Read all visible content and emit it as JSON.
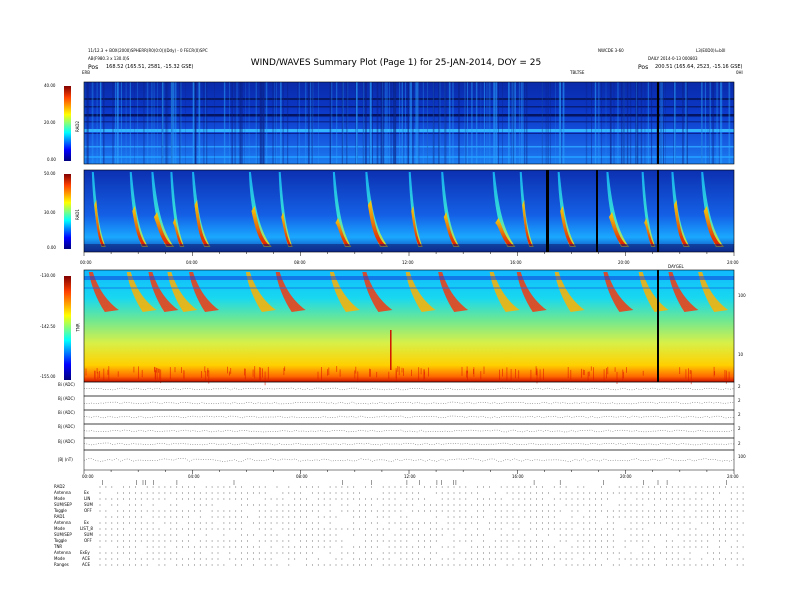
{
  "header": {
    "left_line1": "11/12.3 + BOX(2000)SPHERR(R0(0:0))(Ddy) - 0 FECR(0)SPC",
    "left_line2": "AB(F980.3 x 130.0)S",
    "left_loc_label": "Pos",
    "left_loc_value": "168.52 (165.51, 2581, -15.32 GSE)",
    "right_line1": "DAILY 2014-0-13 000803",
    "right_loc_label": "Pos",
    "right_loc_value": "200.51 (165.64, 2523, -15.16 GSE)",
    "top_mid_right": "NWCDE 3-60",
    "top_far_right": "L3(E0D0)I=b0I",
    "title": "WIND/WAVES Summary Plot (Page 1) for 25-JAN-2014, DOY = 25",
    "sub_tag_left": "ERB",
    "sub_tag_mid": "TBLTSE",
    "sub_tag_right": "0HI"
  },
  "panels": {
    "rad2": {
      "name": "RAD2",
      "ticks": [
        "40.00",
        "20.00",
        "0.00"
      ]
    },
    "rad1": {
      "name": "RAD1",
      "ticks": [
        "50.00",
        "30.00",
        "0.00"
      ]
    },
    "tnr": {
      "name": "TNR",
      "ticks": [
        "-130.00",
        "-142.50",
        "-155.00"
      ],
      "right_ticks": [
        "100",
        "10"
      ],
      "right_tag": "DAYGEL"
    }
  },
  "time_axis_top": [
    "00:00",
    "04:00",
    "08:00",
    "12:00",
    "16:00",
    "20:00",
    "24:00"
  ],
  "time_axis_bottom": [
    "00:00",
    "04:00",
    "08:00",
    "12:00",
    "16:00",
    "20:00",
    "24:00"
  ],
  "lines": [
    {
      "label": "Bi (ADC)",
      "right": "2"
    },
    {
      "label": "Bj (ADC)",
      "right": "2"
    },
    {
      "label": "Bi (ADC)",
      "right": "2"
    },
    {
      "label": "Bj (ADC)",
      "right": "2"
    },
    {
      "label": "Bj (ADC)",
      "right": "2"
    },
    {
      "label": "|B| (nT)",
      "right": "100"
    }
  ],
  "footer": {
    "rad2_title": "RAD2",
    "rad2_rows": [
      {
        "label": "Antenna",
        "value": "Ex"
      },
      {
        "label": "Mode",
        "value": "LIN"
      },
      {
        "label": "SUM/SEP",
        "value": "SUM"
      },
      {
        "label": "Toggle",
        "value": "OFF"
      }
    ],
    "rad1_title": "RAD1",
    "rad1_rows": [
      {
        "label": "Antenna",
        "value": "Ex"
      },
      {
        "label": "Mode",
        "value": "LIST_8"
      },
      {
        "label": "SUM/SEP",
        "value": "SUM"
      },
      {
        "label": "Toggle",
        "value": "OFF"
      }
    ],
    "tnr_title": "TNR",
    "tnr_rows": [
      {
        "label": "Antenna",
        "value": "ExEy"
      },
      {
        "label": "Mode",
        "value": "ACE"
      },
      {
        "label": "Ranges",
        "value": "ACE"
      }
    ]
  },
  "colors": {
    "spec_low": "#0a1e9c",
    "spec_mid": "#12c9ff",
    "spec_high": "#ffe600",
    "spec_peak": "#e0180c"
  },
  "chart_data": {
    "type": "heatmap",
    "title": "WIND/WAVES Summary Plot (Page 1) for 25-JAN-2014, DOY = 25",
    "x": [
      "00:00",
      "04:00",
      "08:00",
      "12:00",
      "16:00",
      "20:00",
      "24:00"
    ],
    "panels": [
      {
        "name": "RAD2",
        "ylim": [
          0,
          40
        ],
        "yticks": [
          40,
          20,
          0
        ]
      },
      {
        "name": "RAD1",
        "ylim": [
          0,
          50
        ],
        "yticks": [
          50,
          30,
          0
        ]
      },
      {
        "name": "TNR",
        "ylim": [
          -155,
          -130
        ],
        "yticks": [
          -130,
          -142.5,
          -155
        ]
      }
    ],
    "bursts_hours": [
      0.4,
      1.8,
      2.6,
      3.3,
      4.1,
      6.2,
      7.3,
      9.3,
      10.5,
      12.1,
      13.3,
      15.2,
      16.2,
      17.6,
      19.4,
      20.7,
      21.8,
      22.9
    ]
  }
}
